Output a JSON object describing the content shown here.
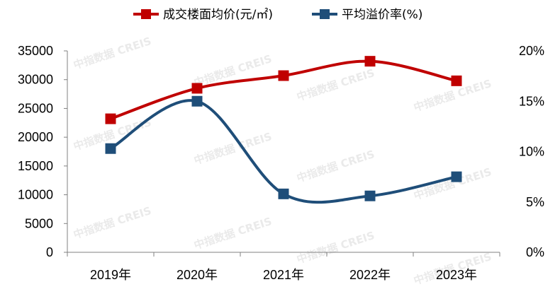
{
  "watermark": "中指数据 CREIS",
  "colors": {
    "price_series": "#c00000",
    "premium_series": "#1f4e79",
    "axis": "#808080",
    "text": "#000000"
  },
  "chart_data": {
    "type": "line",
    "categories": [
      "2019年",
      "2020年",
      "2021年",
      "2022年",
      "2023年"
    ],
    "series": [
      {
        "name": "成交楼面均价(元/㎡)",
        "axis": "left",
        "values": [
          23200,
          28500,
          30700,
          33200,
          29800
        ]
      },
      {
        "name": "平均溢价率(%)",
        "axis": "right",
        "values": [
          10.3,
          15.0,
          5.8,
          5.6,
          7.5
        ]
      }
    ],
    "y_left": {
      "ylim": [
        0,
        35000
      ],
      "ticks": [
        "0",
        "5000",
        "10000",
        "15000",
        "20000",
        "25000",
        "30000",
        "35000"
      ]
    },
    "y_right": {
      "ylim": [
        0,
        20
      ],
      "ticks": [
        "0%",
        "5%",
        "10%",
        "15%",
        "20%"
      ]
    },
    "smooth": true,
    "marker": "square",
    "grid": false,
    "legend_position": "top"
  }
}
